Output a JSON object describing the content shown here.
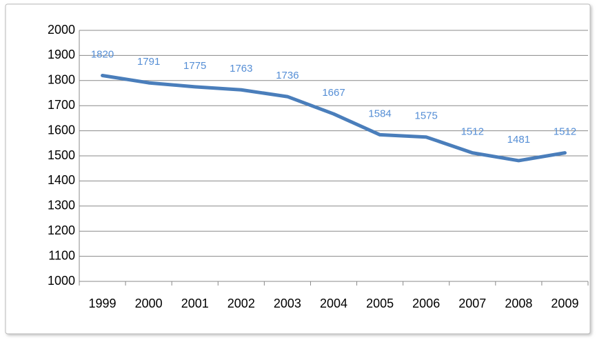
{
  "chart_data": {
    "type": "line",
    "categories": [
      "1999",
      "2000",
      "2001",
      "2002",
      "2003",
      "2004",
      "2005",
      "2006",
      "2007",
      "2008",
      "2009"
    ],
    "values": [
      1820,
      1791,
      1775,
      1763,
      1736,
      1667,
      1584,
      1575,
      1512,
      1481,
      1512
    ],
    "color": "#4a7ebb",
    "label_color": "#558ed5",
    "data_labels": true,
    "ylim": [
      1000,
      2000
    ],
    "yticks": [
      1000,
      1100,
      1200,
      1300,
      1400,
      1500,
      1600,
      1700,
      1800,
      1900,
      2000
    ],
    "grid": true
  }
}
